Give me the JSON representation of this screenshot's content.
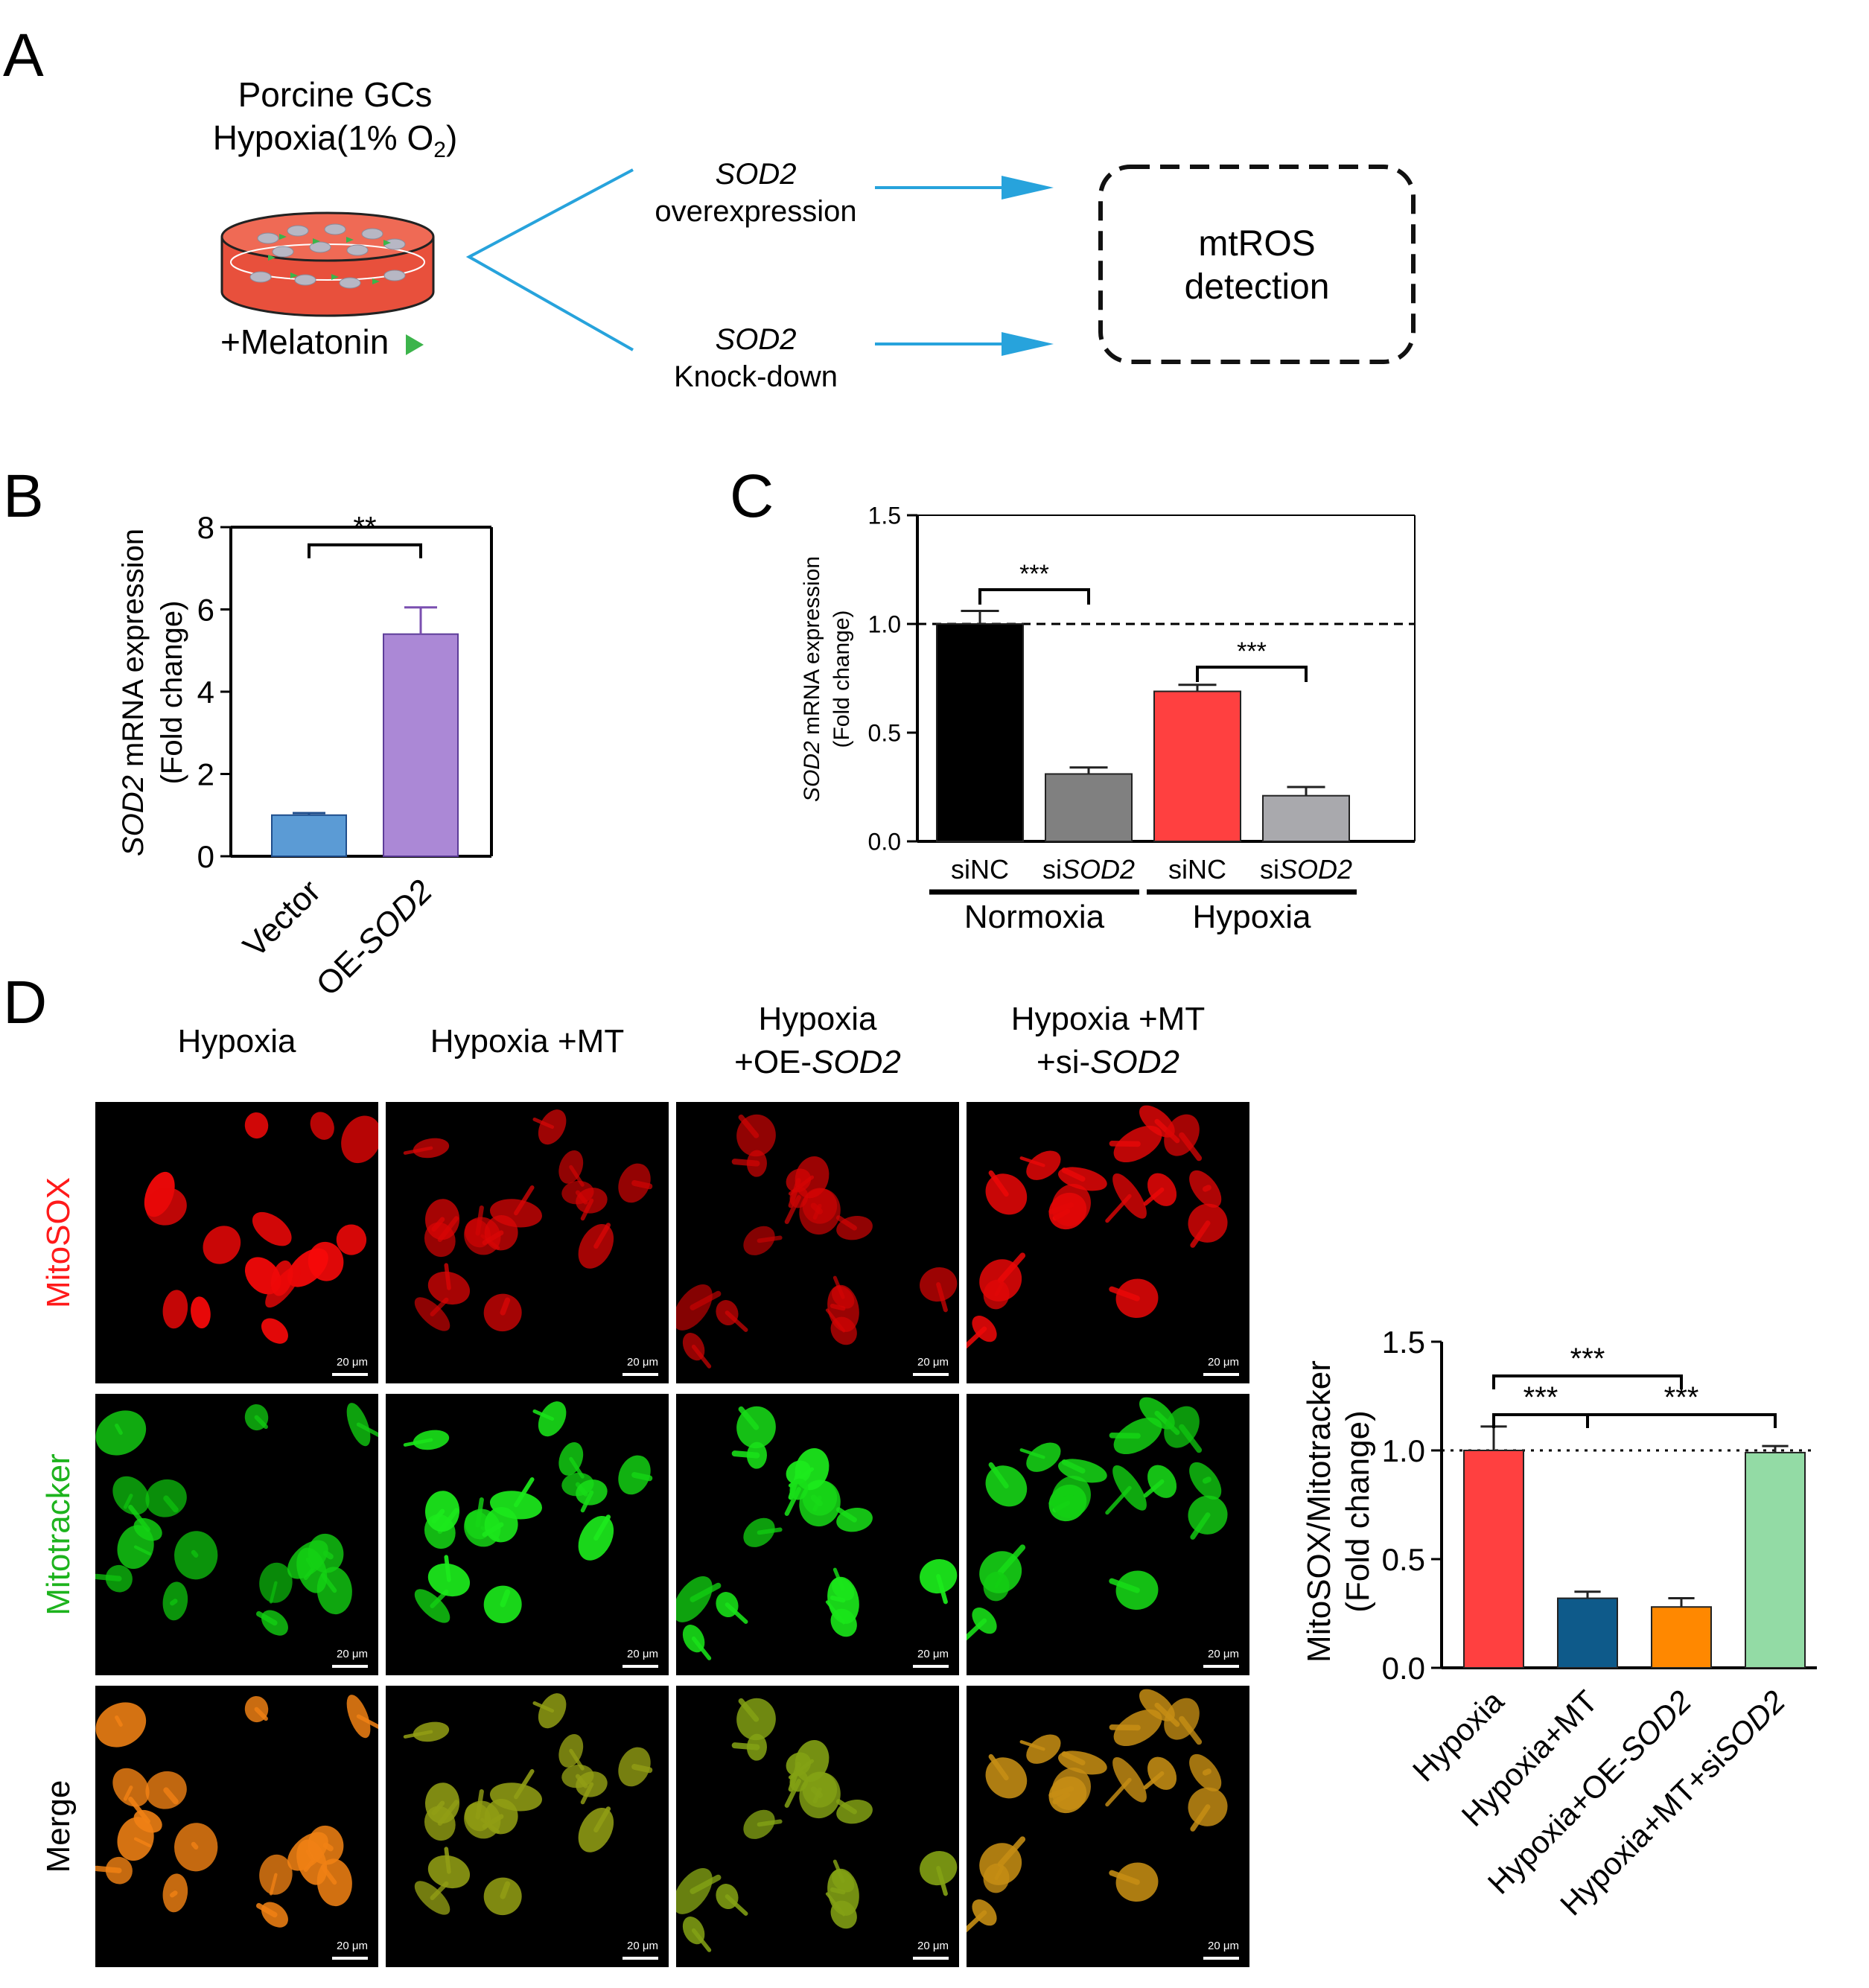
{
  "panels": {
    "a": "A",
    "b": "B",
    "c": "C",
    "d": "D"
  },
  "schematic": {
    "title_line1": "Porcine GCs",
    "title_line2_prefix": "Hypoxia(1% O",
    "title_line2_sub": "2",
    "title_line2_suffix": ")",
    "treatment": "+Melatonin",
    "branch_top_gene": "SOD2",
    "branch_top_action": "overexpression",
    "branch_bottom_gene": "SOD2",
    "branch_bottom_action": "Knock-down",
    "outcome_line1": "mtROS",
    "outcome_line2": "detection",
    "colors": {
      "arrow": "#27a3dc",
      "dish_medium": "#e8503c",
      "melatonin": "#3cb44b"
    }
  },
  "micrographs": {
    "columns": [
      "Hypoxia",
      "Hypoxia +MT",
      "Hypoxia\n+OE-SOD2",
      "Hypoxia +MT\n+si-SOD2"
    ],
    "column_headers": [
      {
        "line1": "Hypoxia",
        "line2": "",
        "line2_prefix": "",
        "line2_italic": ""
      },
      {
        "line1": "Hypoxia +MT",
        "line2": "",
        "line2_prefix": "",
        "line2_italic": ""
      },
      {
        "line1": "Hypoxia",
        "line2_prefix": "+OE-",
        "line2_italic": "SOD2"
      },
      {
        "line1": "Hypoxia +MT",
        "line2_prefix": "+si-",
        "line2_italic": "SOD2"
      }
    ],
    "rows": [
      {
        "label": "MitoSOX",
        "color": "#ff1a1a"
      },
      {
        "label": "Mitotracker",
        "color": "#1db31d"
      },
      {
        "label": "Merge",
        "color": "#000000"
      }
    ],
    "scale_bar": "20 μm"
  },
  "chart_data": [
    {
      "panel": "B",
      "type": "bar",
      "categories": [
        "Vector",
        "OE-SOD2"
      ],
      "category_parts": [
        {
          "plain": "Vector",
          "italic": ""
        },
        {
          "plain": "OE-",
          "italic": "SOD2"
        }
      ],
      "values": [
        1.0,
        5.4
      ],
      "errors": [
        0.05,
        0.65
      ],
      "colors": [
        "#5b9bd5",
        "#ab88d6"
      ],
      "ylabel_italic": "SOD2",
      "ylabel_rest": " mRNA expression",
      "ylabel_line2": "(Fold change)",
      "ylim": [
        0,
        8
      ],
      "yticks": [
        "0",
        "2",
        "4",
        "6",
        "8"
      ],
      "significance": [
        {
          "between": [
            0,
            1
          ],
          "label": "**"
        }
      ]
    },
    {
      "panel": "C",
      "type": "bar",
      "categories": [
        "siNC",
        "siSOD2",
        "siNC",
        "siSOD2"
      ],
      "category_parts": [
        {
          "plain": "siNC",
          "italic": ""
        },
        {
          "plain": "si",
          "italic": "SOD2"
        },
        {
          "plain": "siNC",
          "italic": ""
        },
        {
          "plain": "si",
          "italic": "SOD2"
        }
      ],
      "groups": [
        {
          "name": "Normoxia",
          "indices": [
            0,
            1
          ]
        },
        {
          "name": "Hypoxia",
          "indices": [
            2,
            3
          ]
        }
      ],
      "values": [
        1.0,
        0.31,
        0.69,
        0.21
      ],
      "errors": [
        0.06,
        0.03,
        0.03,
        0.04
      ],
      "colors": [
        "#000000",
        "#808080",
        "#ff4040",
        "#a9a9ad"
      ],
      "ylabel_italic": "SOD2",
      "ylabel_rest": " mRNA expression",
      "ylabel_line2": "(Fold change)",
      "ylim": [
        0,
        1.5
      ],
      "yticks": [
        "0.0",
        "0.5",
        "1.0",
        "1.5"
      ],
      "reference_line": 1.0,
      "significance": [
        {
          "between": [
            0,
            1
          ],
          "label": "***"
        },
        {
          "between": [
            2,
            3
          ],
          "label": "***"
        }
      ]
    },
    {
      "panel": "D",
      "type": "bar",
      "categories": [
        "Hypoxia",
        "Hypoxia+MT",
        "Hypoxia+OE-SOD2",
        "Hypoxia+MT+siSOD2"
      ],
      "category_parts": [
        {
          "plain": "Hypoxia",
          "italic": ""
        },
        {
          "plain": "Hypoxia+MT",
          "italic": ""
        },
        {
          "plain": "Hypoxia+OE-",
          "italic": "SOD2"
        },
        {
          "plain": "Hypoxia+MT+si",
          "italic": "SOD2"
        }
      ],
      "values": [
        1.0,
        0.32,
        0.28,
        0.99
      ],
      "errors": [
        0.11,
        0.03,
        0.04,
        0.03
      ],
      "colors": [
        "#ff4040",
        "#0e5a8a",
        "#ff8800",
        "#93dba5"
      ],
      "ylabel": "MitoSOX/Mitotracker",
      "ylabel_line2": "(Fold change)",
      "ylim": [
        0,
        1.5
      ],
      "yticks": [
        "0.0",
        "0.5",
        "1.0",
        "1.5"
      ],
      "reference_line": 1.0,
      "significance": [
        {
          "between": [
            0,
            2
          ],
          "label": "***"
        },
        {
          "between": [
            0,
            1
          ],
          "label": "***"
        },
        {
          "between": [
            1,
            3
          ],
          "label": "***"
        }
      ]
    }
  ]
}
